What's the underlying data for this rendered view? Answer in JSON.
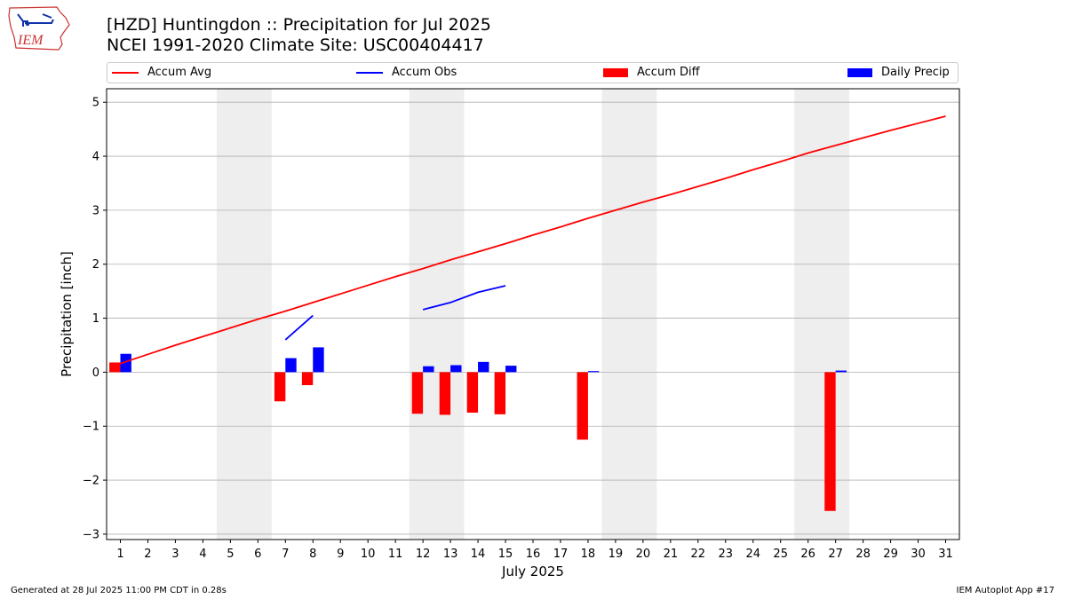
{
  "header": {
    "title_line1": "[HZD] Huntingdon :: Precipitation for Jul 2025",
    "title_line2": "NCEI 1991-2020 Climate Site: USC00404417",
    "logo_text": "IEM"
  },
  "footer": {
    "generated": "Generated at 28 Jul 2025 11:00 PM CDT in 0.28s",
    "app": "IEM Autoplot App #17"
  },
  "colors": {
    "avg": "#ff0000",
    "obs": "#0000ff",
    "diff": "#ff0000",
    "daily": "#0000ff",
    "weekend": "#eeeeee",
    "grid": "#b0b0b0"
  },
  "chart_data": {
    "type": "bar+line",
    "title": "[HZD] Huntingdon :: Precipitation for Jul 2025",
    "subtitle": "NCEI 1991-2020 Climate Site: USC00404417",
    "xlabel": "July 2025",
    "ylabel": "Precipitation [inch]",
    "ylim": [
      -3.1,
      5.25
    ],
    "yticks": [
      -3,
      -2,
      -1,
      0,
      1,
      2,
      3,
      4,
      5
    ],
    "xlim": [
      0.5,
      31.5
    ],
    "days": [
      1,
      2,
      3,
      4,
      5,
      6,
      7,
      8,
      9,
      10,
      11,
      12,
      13,
      14,
      15,
      16,
      17,
      18,
      19,
      20,
      21,
      22,
      23,
      24,
      25,
      26,
      27,
      28,
      29,
      30,
      31
    ],
    "weekend_spans": [
      [
        5,
        6
      ],
      [
        12,
        13
      ],
      [
        19,
        20
      ],
      [
        26,
        27
      ]
    ],
    "legend": {
      "accum_avg": "Accum Avg",
      "accum_obs": "Accum Obs",
      "accum_diff": "Accum Diff",
      "daily_precip": "Daily Precip"
    },
    "grid": true,
    "series": [
      {
        "name": "Accum Avg",
        "type": "line",
        "x": [
          1,
          2,
          3,
          4,
          5,
          6,
          7,
          8,
          9,
          10,
          11,
          12,
          13,
          14,
          15,
          16,
          17,
          18,
          19,
          20,
          21,
          22,
          23,
          24,
          25,
          26,
          27,
          28,
          29,
          30,
          31
        ],
        "values": [
          0.16,
          0.33,
          0.5,
          0.66,
          0.82,
          0.98,
          1.13,
          1.29,
          1.45,
          1.61,
          1.77,
          1.92,
          2.08,
          2.23,
          2.38,
          2.54,
          2.69,
          2.85,
          3.0,
          3.15,
          3.29,
          3.44,
          3.59,
          3.75,
          3.9,
          4.06,
          4.2,
          4.34,
          4.48,
          4.61,
          4.74
        ]
      },
      {
        "name": "Accum Obs",
        "type": "line",
        "segments": [
          {
            "x": [
              7,
              8
            ],
            "values": [
              0.6,
              1.05
            ]
          },
          {
            "x": [
              12,
              13,
              14,
              15
            ],
            "values": [
              1.16,
              1.29,
              1.48,
              1.6
            ]
          }
        ]
      },
      {
        "name": "Accum Diff",
        "type": "bar",
        "x": [
          1,
          7,
          8,
          12,
          13,
          14,
          15,
          18,
          27
        ],
        "values": [
          0.18,
          -0.54,
          -0.24,
          -0.77,
          -0.79,
          -0.75,
          -0.78,
          -1.25,
          -2.57
        ]
      },
      {
        "name": "Daily Precip",
        "type": "bar",
        "x": [
          1,
          7,
          8,
          12,
          13,
          14,
          15,
          18,
          27
        ],
        "values": [
          0.34,
          0.26,
          0.46,
          0.11,
          0.13,
          0.19,
          0.12,
          0.02,
          0.03
        ]
      }
    ]
  }
}
